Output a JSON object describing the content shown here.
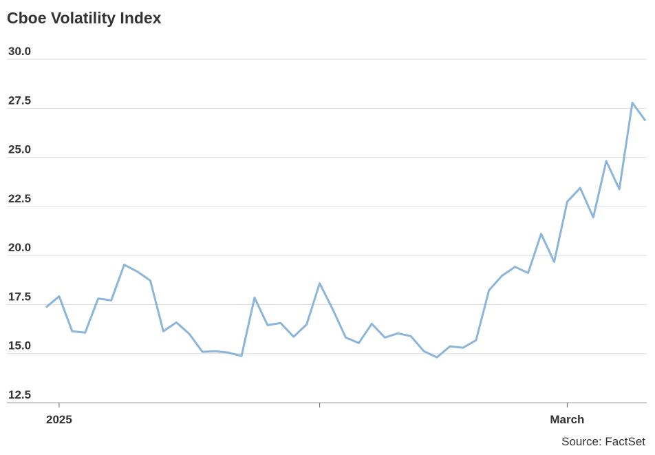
{
  "chart_data": {
    "type": "line",
    "title": "Cboe Volatility Index",
    "source": "Source: FactSet",
    "categories": [
      null,
      "2025",
      null,
      null,
      null,
      null,
      null,
      null,
      null,
      null,
      null,
      null,
      null,
      null,
      null,
      null,
      null,
      null,
      null,
      null,
      null,
      null,
      null,
      null,
      null,
      null,
      null,
      null,
      null,
      null,
      null,
      null,
      null,
      null,
      null,
      null,
      null,
      null,
      null,
      null,
      "March",
      null,
      null,
      null,
      null,
      null,
      null
    ],
    "xticks": [
      1,
      21,
      40
    ],
    "series": [
      {
        "name": "Cboe Volatility Index",
        "color": "#8bb5da",
        "values": [
          17.36,
          17.92,
          16.14,
          16.07,
          17.81,
          17.71,
          19.53,
          19.18,
          18.72,
          16.14,
          16.59,
          16.0,
          15.09,
          15.12,
          15.05,
          14.88,
          17.85,
          16.45,
          16.56,
          15.86,
          16.49,
          18.58,
          17.26,
          15.82,
          15.54,
          16.52,
          15.82,
          16.03,
          15.89,
          15.12,
          14.81,
          15.37,
          15.3,
          15.68,
          18.23,
          18.97,
          19.42,
          19.11,
          21.1,
          19.67,
          22.74,
          23.44,
          21.94,
          24.81,
          23.37,
          27.78,
          26.87
        ]
      }
    ],
    "ylim": [
      12.5,
      30
    ],
    "yticks": [
      {
        "value": 12.5,
        "label": "12.5"
      },
      {
        "value": 15,
        "label": "15.0"
      },
      {
        "value": 17.5,
        "label": "17.5"
      },
      {
        "value": 20,
        "label": "20.0"
      },
      {
        "value": 22.5,
        "label": "22.5"
      },
      {
        "value": 25,
        "label": "25.0"
      },
      {
        "value": 27.5,
        "label": "27.5"
      },
      {
        "value": 30,
        "label": "30.0"
      }
    ],
    "grid": true
  }
}
